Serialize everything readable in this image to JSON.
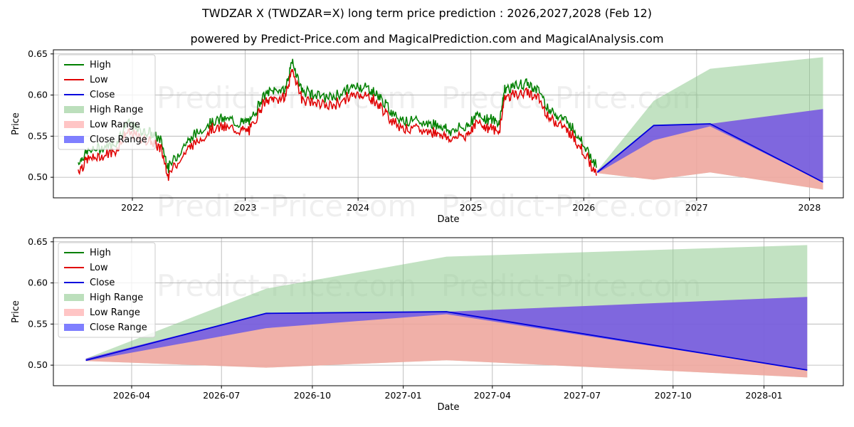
{
  "title": "TWDZAR X (TWDZAR=X) long term price prediction : 2026,2027,2028 (Feb 12)",
  "subtitle": "powered by Predict-Price.com and MagicalPrediction.com and MagicalAnalysis.com",
  "watermark": "Predict-Price.com",
  "colors": {
    "high": "#008000",
    "low": "#e00000",
    "close": "#0000dd",
    "high_range": "#8fca8f",
    "low_range": "#ff9f9f",
    "close_range": "#3a3aff"
  },
  "legend": [
    "High",
    "Low",
    "Close",
    "High Range",
    "Low Range",
    "Close Range"
  ],
  "chart_data": [
    {
      "type": "line",
      "panel": "top",
      "xlabel": "Date",
      "ylabel": "Price",
      "xlim": [
        2021.3,
        2028.3
      ],
      "ylim": [
        0.475,
        0.655
      ],
      "x_ticks": [
        "2022",
        "2023",
        "2024",
        "2025",
        "2026",
        "2027",
        "2028"
      ],
      "y_ticks": [
        "0.50",
        "0.55",
        "0.60",
        "0.65"
      ],
      "history_anchors": {
        "x": [
          2021.52,
          2021.6,
          2021.72,
          2021.85,
          2021.95,
          2022.05,
          2022.15,
          2022.25,
          2022.32,
          2022.45,
          2022.55,
          2022.7,
          2022.82,
          2022.95,
          2023.05,
          2023.15,
          2023.25,
          2023.35,
          2023.42,
          2023.5,
          2023.6,
          2023.75,
          2023.9,
          2024.0,
          2024.1,
          2024.2,
          2024.3,
          2024.45,
          2024.6,
          2024.72,
          2024.82,
          2024.95,
          2025.05,
          2025.15,
          2025.25,
          2025.3,
          2025.4,
          2025.5,
          2025.6,
          2025.7,
          2025.8,
          2025.9,
          2026.0,
          2026.12
        ],
        "close": [
          0.512,
          0.525,
          0.53,
          0.535,
          0.56,
          0.552,
          0.548,
          0.54,
          0.505,
          0.532,
          0.545,
          0.562,
          0.565,
          0.56,
          0.562,
          0.592,
          0.6,
          0.6,
          0.635,
          0.6,
          0.595,
          0.59,
          0.6,
          0.605,
          0.602,
          0.59,
          0.572,
          0.562,
          0.56,
          0.558,
          0.55,
          0.555,
          0.57,
          0.565,
          0.56,
          0.602,
          0.605,
          0.608,
          0.6,
          0.575,
          0.568,
          0.555,
          0.535,
          0.505
        ]
      },
      "forecast": {
        "x": [
          2026.12,
          2026.62,
          2027.12,
          2028.12
        ],
        "high_range_upper": [
          0.508,
          0.593,
          0.632,
          0.646
        ],
        "low_range_lower": [
          0.505,
          0.497,
          0.506,
          0.485
        ],
        "close_range_upper": [
          0.508,
          0.563,
          0.565,
          0.583
        ],
        "close_range_lower": [
          0.505,
          0.545,
          0.562,
          0.494
        ],
        "close": [
          0.506,
          0.563,
          0.565,
          0.494
        ]
      }
    },
    {
      "type": "area",
      "panel": "bottom",
      "xlabel": "Date",
      "ylabel": "Price",
      "xlim": [
        2026.03,
        2028.22
      ],
      "ylim": [
        0.475,
        0.655
      ],
      "x_ticks": [
        "2026-04",
        "2026-07",
        "2026-10",
        "2027-01",
        "2027-04",
        "2027-07",
        "2027-10",
        "2028-01"
      ],
      "x_tick_values": [
        2026.247,
        2026.496,
        2026.748,
        2027.0,
        2027.247,
        2027.496,
        2027.748,
        2028.0
      ],
      "y_ticks": [
        "0.50",
        "0.55",
        "0.60",
        "0.65"
      ],
      "forecast": {
        "x": [
          2026.12,
          2026.62,
          2027.12,
          2028.12
        ],
        "high_range_upper": [
          0.508,
          0.593,
          0.632,
          0.646
        ],
        "low_range_lower": [
          0.505,
          0.497,
          0.506,
          0.485
        ],
        "close_range_upper": [
          0.508,
          0.563,
          0.565,
          0.583
        ],
        "close_range_lower": [
          0.505,
          0.545,
          0.562,
          0.494
        ],
        "close": [
          0.506,
          0.563,
          0.565,
          0.494
        ]
      }
    }
  ]
}
